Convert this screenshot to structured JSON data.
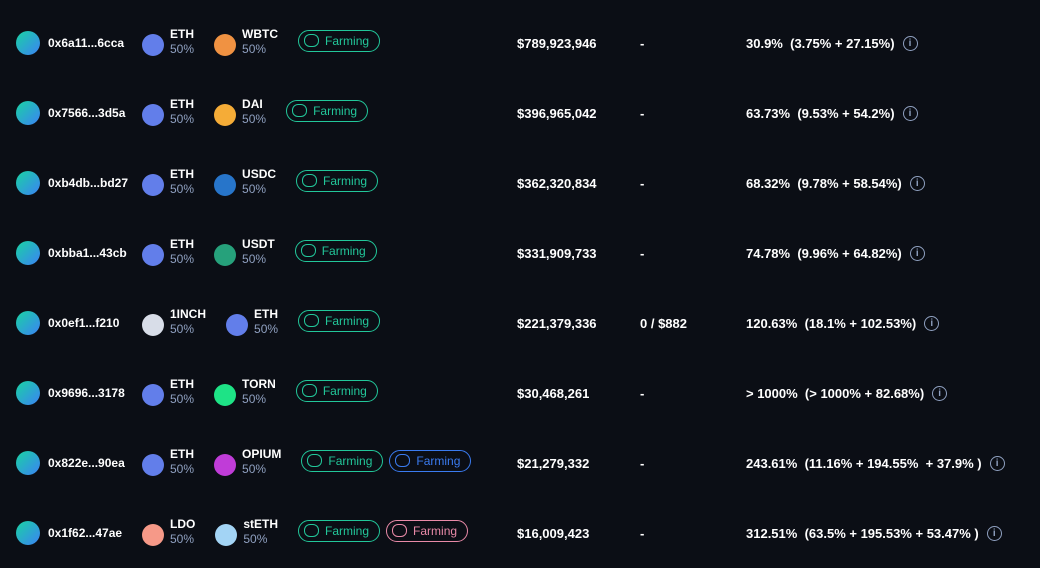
{
  "rows": [
    {
      "address": "0x6a11...6cca",
      "token1": {
        "symbol": "ETH",
        "weight": "50%",
        "color": "#627eea"
      },
      "token2": {
        "symbol": "WBTC",
        "weight": "50%",
        "color": "#f09242"
      },
      "badges": [
        {
          "label": "Farming",
          "color": "#22c79a"
        }
      ],
      "tvl": "$789,923,946",
      "volume": "-",
      "apy": "30.9%",
      "breakdown": "(3.75% + 27.15%)"
    },
    {
      "address": "0x7566...3d5a",
      "token1": {
        "symbol": "ETH",
        "weight": "50%",
        "color": "#627eea"
      },
      "token2": {
        "symbol": "DAI",
        "weight": "50%",
        "color": "#f5ac37"
      },
      "badges": [
        {
          "label": "Farming",
          "color": "#22c79a"
        }
      ],
      "tvl": "$396,965,042",
      "volume": "-",
      "apy": "63.73%",
      "breakdown": "(9.53% + 54.2%)"
    },
    {
      "address": "0xb4db...bd27",
      "token1": {
        "symbol": "ETH",
        "weight": "50%",
        "color": "#627eea"
      },
      "token2": {
        "symbol": "USDC",
        "weight": "50%",
        "color": "#2775ca"
      },
      "badges": [
        {
          "label": "Farming",
          "color": "#22c79a"
        }
      ],
      "tvl": "$362,320,834",
      "volume": "-",
      "apy": "68.32%",
      "breakdown": "(9.78% + 58.54%)"
    },
    {
      "address": "0xbba1...43cb",
      "token1": {
        "symbol": "ETH",
        "weight": "50%",
        "color": "#627eea"
      },
      "token2": {
        "symbol": "USDT",
        "weight": "50%",
        "color": "#26a17b"
      },
      "badges": [
        {
          "label": "Farming",
          "color": "#22c79a"
        }
      ],
      "tvl": "$331,909,733",
      "volume": "-",
      "apy": "74.78%",
      "breakdown": "(9.96% + 64.82%)"
    },
    {
      "address": "0x0ef1...f210",
      "token1": {
        "symbol": "1INCH",
        "weight": "50%",
        "color": "#d8dde8"
      },
      "token2": {
        "symbol": "ETH",
        "weight": "50%",
        "color": "#627eea"
      },
      "badges": [
        {
          "label": "Farming",
          "color": "#22c79a"
        }
      ],
      "tvl": "$221,379,336",
      "volume": "0 / $882",
      "apy": "120.63%",
      "breakdown": "(18.1% + 102.53%)"
    },
    {
      "address": "0x9696...3178",
      "token1": {
        "symbol": "ETH",
        "weight": "50%",
        "color": "#627eea"
      },
      "token2": {
        "symbol": "TORN",
        "weight": "50%",
        "color": "#1ee386"
      },
      "badges": [
        {
          "label": "Farming",
          "color": "#22c79a"
        }
      ],
      "tvl": "$30,468,261",
      "volume": "-",
      "apy": "> 1000%",
      "breakdown": "(> 1000% + 82.68%)"
    },
    {
      "address": "0x822e...90ea",
      "token1": {
        "symbol": "ETH",
        "weight": "50%",
        "color": "#627eea"
      },
      "token2": {
        "symbol": "OPIUM",
        "weight": "50%",
        "color": "#c03cd8"
      },
      "badges": [
        {
          "label": "Farming",
          "color": "#22c79a"
        },
        {
          "label": "Farming",
          "color": "#3a7bf0"
        }
      ],
      "tvl": "$21,279,332",
      "volume": "-",
      "apy": "243.61%",
      "breakdown": "(11.16% + 194.55%  + 37.9% )"
    },
    {
      "address": "0x1f62...47ae",
      "token1": {
        "symbol": "LDO",
        "weight": "50%",
        "color": "#f69988"
      },
      "token2": {
        "symbol": "stETH",
        "weight": "50%",
        "color": "#a3d4f5"
      },
      "badges": [
        {
          "label": "Farming",
          "color": "#22c79a"
        },
        {
          "label": "Farming",
          "color": "#e98aa8"
        }
      ],
      "tvl": "$16,009,423",
      "volume": "-",
      "apy": "312.51%",
      "breakdown": "(63.5% + 195.53% + 53.47% )"
    }
  ]
}
